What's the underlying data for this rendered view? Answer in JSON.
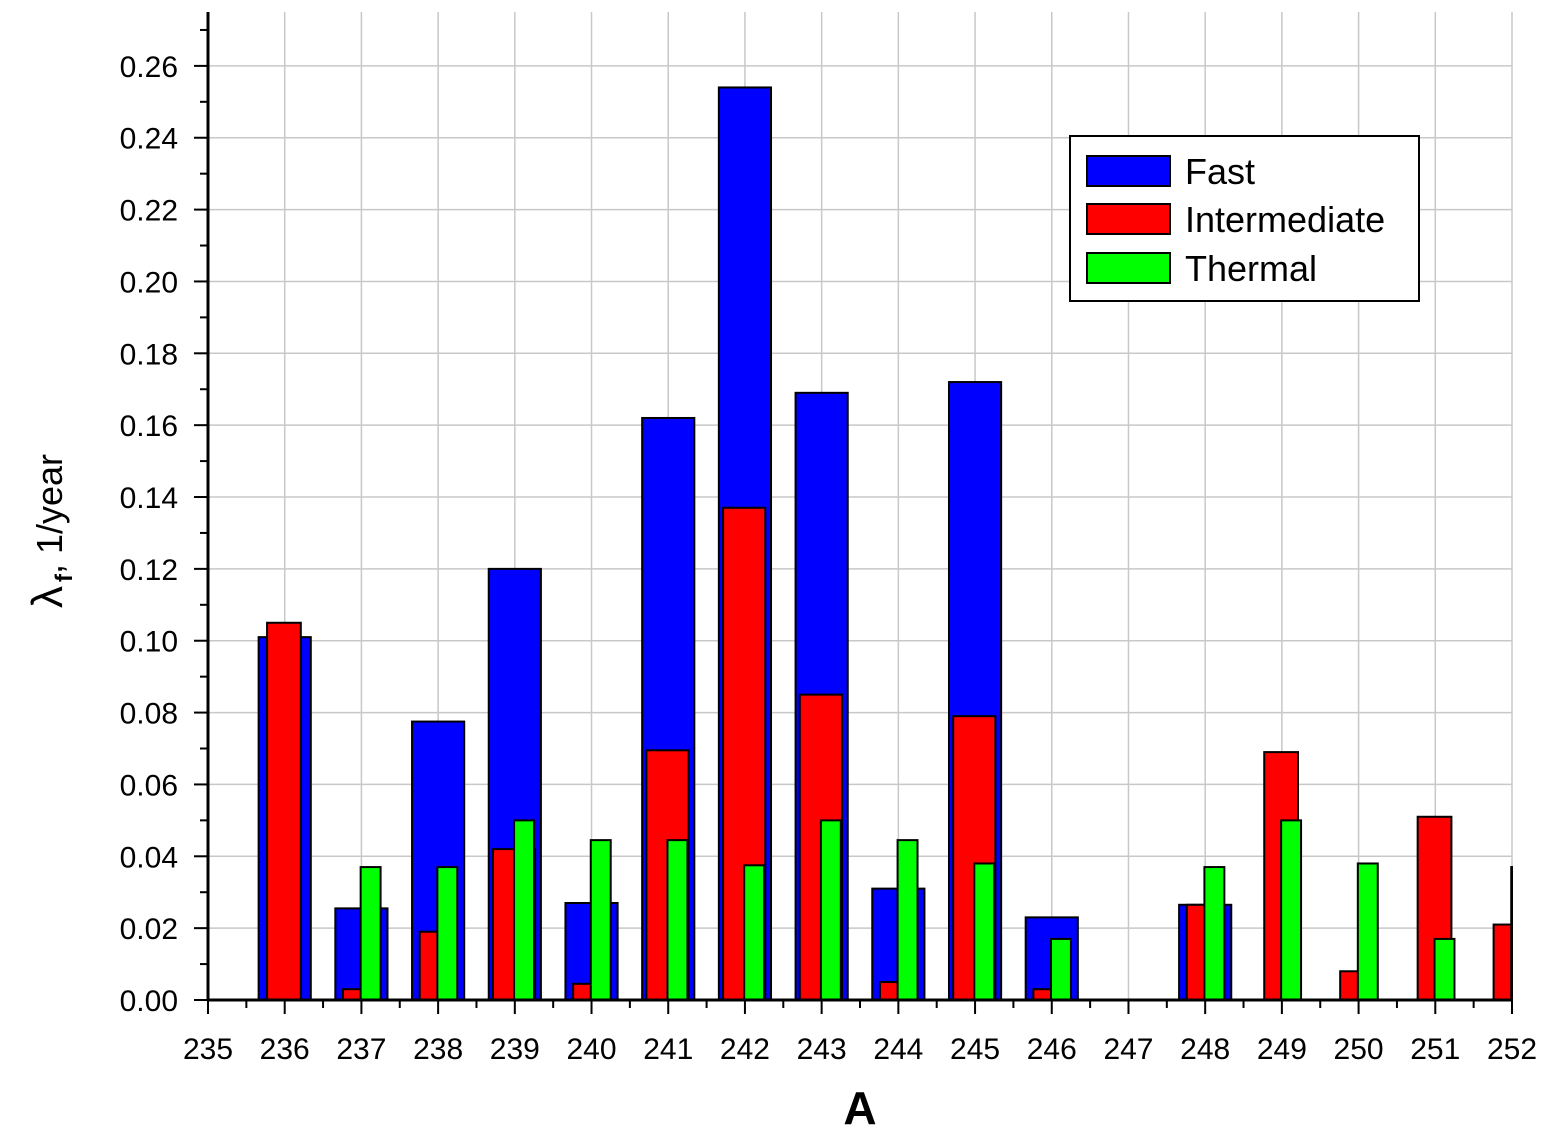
{
  "chart_data": {
    "type": "bar",
    "xlabel": "A",
    "ylabel": {
      "symbol": "λ",
      "subscript": "f",
      "suffix": ", 1/year"
    },
    "xlim": [
      235,
      252
    ],
    "ylim": [
      0,
      0.275
    ],
    "x_ticks": [
      "235",
      "236",
      "237",
      "238",
      "239",
      "240",
      "241",
      "242",
      "243",
      "244",
      "245",
      "246",
      "247",
      "248",
      "249",
      "250",
      "251",
      "252"
    ],
    "y_ticks": [
      "0.00",
      "0.02",
      "0.04",
      "0.06",
      "0.08",
      "0.10",
      "0.12",
      "0.14",
      "0.16",
      "0.18",
      "0.20",
      "0.22",
      "0.24",
      "0.26"
    ],
    "grid": true,
    "legend_position": "top-right",
    "categories": [
      236,
      237,
      238,
      239,
      240,
      241,
      242,
      243,
      244,
      245,
      246,
      248,
      249,
      250,
      251,
      252
    ],
    "series": [
      {
        "name": "Fast",
        "color": "#0000ff",
        "values": [
          0.101,
          0.0255,
          0.0775,
          0.12,
          0.027,
          0.162,
          0.254,
          0.169,
          0.031,
          0.172,
          0.023,
          0.0265,
          null,
          null,
          null,
          null
        ]
      },
      {
        "name": "Intermediate",
        "color": "#ff0000",
        "values": [
          0.105,
          0.003,
          0.019,
          0.042,
          0.0045,
          0.0695,
          0.137,
          0.085,
          0.005,
          0.079,
          0.003,
          0.0265,
          0.069,
          0.008,
          0.051,
          0.021
        ]
      },
      {
        "name": "Thermal",
        "color": "#00ff00",
        "values": [
          null,
          0.037,
          0.037,
          0.05,
          0.0445,
          0.0445,
          0.0375,
          0.05,
          0.0445,
          0.038,
          0.017,
          0.037,
          0.05,
          0.038,
          0.017,
          0.037
        ]
      }
    ]
  }
}
